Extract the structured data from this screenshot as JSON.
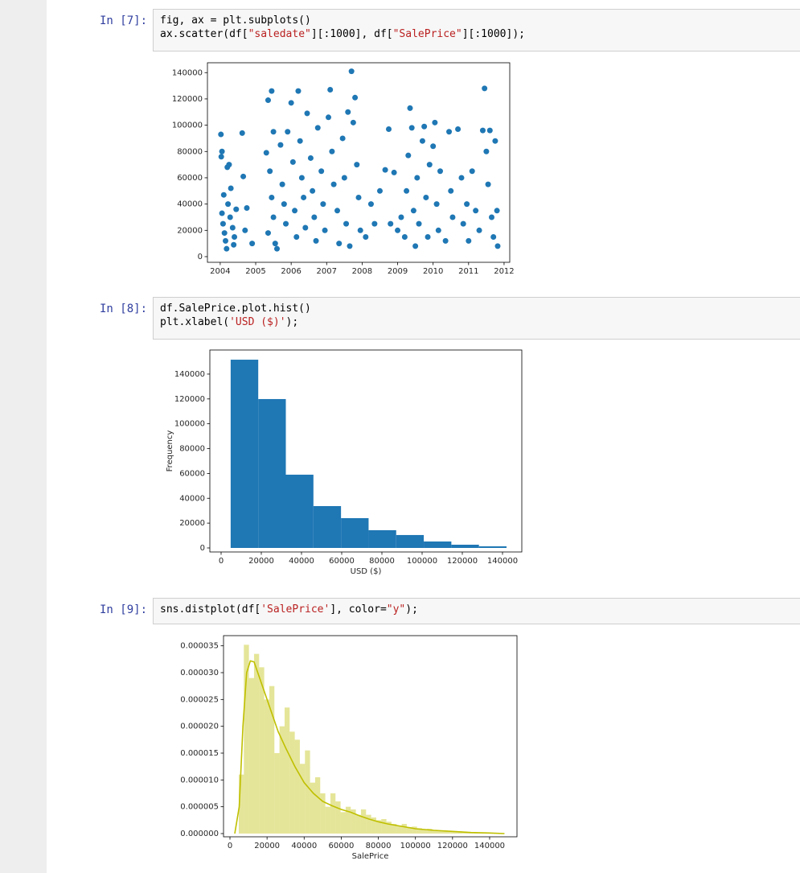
{
  "cells": [
    {
      "prompt": "In [7]:",
      "code": [
        "fig, ax = plt.subplots()",
        "ax.scatter(df[\"saledate\"][:1000], df[\"SalePrice\"][:1000]);"
      ]
    },
    {
      "prompt": "In [8]:",
      "code": [
        "df.SalePrice.plot.hist()",
        "plt.xlabel('USD ($)');"
      ]
    },
    {
      "prompt": "In [9]:",
      "code": [
        "sns.distplot(df['SalePrice'], color=\"y\");"
      ]
    }
  ],
  "chart_data": [
    {
      "type": "scatter",
      "color": "#1f77b4",
      "x": [
        2004.02,
        2004.05,
        2004.03,
        2004.1,
        2004.05,
        2004.08,
        2004.12,
        2004.15,
        2004.2,
        2004.25,
        2004.3,
        2004.22,
        2004.28,
        2004.35,
        2004.4,
        2004.45,
        2004.38,
        2004.18,
        2004.65,
        2004.62,
        2004.75,
        2004.7,
        2004.9,
        2005.35,
        2005.45,
        2005.5,
        2005.3,
        2005.4,
        2005.45,
        2005.5,
        2005.35,
        2005.55,
        2005.6,
        2005.7,
        2005.75,
        2005.8,
        2005.85,
        2005.9,
        2006.0,
        2006.05,
        2006.1,
        2006.15,
        2006.2,
        2006.25,
        2006.3,
        2006.35,
        2006.4,
        2006.45,
        2006.55,
        2006.6,
        2006.65,
        2006.7,
        2006.75,
        2006.85,
        2006.9,
        2006.95,
        2007.05,
        2007.1,
        2007.15,
        2007.2,
        2007.3,
        2007.35,
        2007.45,
        2007.5,
        2007.55,
        2007.6,
        2007.7,
        2007.75,
        2007.8,
        2007.85,
        2007.9,
        2007.95,
        2007.65,
        2008.1,
        2008.25,
        2008.35,
        2008.5,
        2008.65,
        2008.75,
        2008.8,
        2008.9,
        2009.0,
        2009.1,
        2009.2,
        2009.25,
        2009.3,
        2009.35,
        2009.4,
        2009.45,
        2009.5,
        2009.55,
        2009.6,
        2009.7,
        2009.75,
        2009.8,
        2009.85,
        2009.9,
        2010.0,
        2010.05,
        2010.1,
        2010.15,
        2010.2,
        2010.35,
        2010.45,
        2010.5,
        2010.55,
        2010.7,
        2010.8,
        2010.85,
        2010.95,
        2011.0,
        2011.1,
        2011.2,
        2011.3,
        2011.4,
        2011.45,
        2011.5,
        2011.55,
        2011.6,
        2011.65,
        2011.7,
        2011.75,
        2011.8,
        2011.82
      ],
      "values": [
        93000,
        80000,
        76000,
        47000,
        33000,
        25000,
        18000,
        12000,
        68000,
        70000,
        52000,
        40000,
        30000,
        22000,
        15000,
        36000,
        9000,
        6000,
        61000,
        94000,
        37000,
        20000,
        10000,
        119000,
        126000,
        95000,
        79000,
        65000,
        45000,
        30000,
        18000,
        10000,
        6000,
        85000,
        55000,
        40000,
        25000,
        95000,
        117000,
        72000,
        35000,
        15000,
        126000,
        88000,
        60000,
        45000,
        22000,
        109000,
        75000,
        50000,
        30000,
        12000,
        98000,
        65000,
        40000,
        20000,
        106000,
        127000,
        80000,
        55000,
        35000,
        10000,
        90000,
        60000,
        25000,
        110000,
        141000,
        102000,
        121000,
        70000,
        45000,
        20000,
        8000,
        15000,
        40000,
        25000,
        50000,
        66000,
        97000,
        25000,
        64000,
        20000,
        30000,
        15000,
        50000,
        77000,
        113000,
        98000,
        35000,
        8000,
        60000,
        25000,
        88000,
        99000,
        45000,
        15000,
        70000,
        84000,
        102000,
        40000,
        20000,
        65000,
        12000,
        95000,
        50000,
        30000,
        97000,
        60000,
        25000,
        40000,
        12000,
        65000,
        35000,
        20000,
        96000,
        128000,
        80000,
        55000,
        96000,
        30000,
        15000,
        88000,
        35000,
        8000
      ],
      "xlim": [
        2003.64,
        2012.16
      ],
      "xticks": [
        2004,
        2005,
        2006,
        2007,
        2008,
        2009,
        2010,
        2011,
        2012
      ],
      "ylim": [
        -4300,
        147500
      ],
      "yticks": [
        0,
        20000,
        40000,
        60000,
        80000,
        100000,
        120000,
        140000
      ]
    },
    {
      "type": "histogram",
      "color": "#1f77b4",
      "xlabel": "USD ($)",
      "ylabel": "Frequency",
      "bins": [
        4750,
        18475,
        32200,
        45925,
        59650,
        73375,
        87100,
        100825,
        114550,
        128275,
        142000
      ],
      "values": [
        151600,
        119900,
        59000,
        33700,
        24000,
        14300,
        10400,
        5200,
        2600,
        1300
      ],
      "xlim": [
        -5600,
        149600
      ],
      "xticks": [
        0,
        20000,
        40000,
        60000,
        80000,
        100000,
        120000,
        140000
      ],
      "ylim": [
        -3240,
        159400
      ],
      "yticks": [
        0,
        20000,
        40000,
        60000,
        80000,
        100000,
        120000,
        140000
      ]
    },
    {
      "type": "histogram",
      "color": "#bfbf00",
      "xlabel": "SalePrice",
      "bins": [
        4750,
        7495,
        10240,
        12985,
        15730,
        18475,
        21220,
        23965,
        26710,
        29455,
        32200,
        34945,
        37690,
        40435,
        43180,
        45925,
        48670,
        51415,
        54160,
        56905,
        59650,
        62395,
        65140,
        67885,
        70630,
        73375,
        76120,
        78865,
        81610,
        84355,
        87100,
        89845,
        92590,
        95335,
        98080,
        100825,
        103570,
        106315,
        109060,
        111805,
        114550,
        117295,
        120040,
        122785,
        125530,
        128275,
        131020,
        133765,
        136510,
        139255,
        142000
      ],
      "values": [
        1.1e-05,
        3.52e-05,
        2.9e-05,
        3.35e-05,
        3.1e-05,
        2.5e-05,
        2.75e-05,
        1.5e-05,
        2e-05,
        2.35e-05,
        1.9e-05,
        1.75e-05,
        1.3e-05,
        1.55e-05,
        9.5e-06,
        1.05e-05,
        7.5e-06,
        5e-06,
        7.5e-06,
        6e-06,
        4e-06,
        5e-06,
        4.5e-06,
        3.5e-06,
        4.5e-06,
        3.5e-06,
        3e-06,
        2.5e-06,
        2.7e-06,
        2.2e-06,
        1.8e-06,
        1.5e-06,
        1.8e-06,
        1.2e-06,
        1.3e-06,
        1e-06,
        8e-07,
        9e-07,
        7e-07,
        6e-07,
        6e-07,
        5e-07,
        4e-07,
        4e-07,
        3e-07,
        3e-07,
        2e-07,
        2e-07,
        1.5e-07,
        1e-07
      ],
      "kde": {
        "x": [
          2600,
          5000,
          7000,
          9000,
          11000,
          13000,
          15000,
          18000,
          22000,
          26000,
          30000,
          35000,
          40000,
          45000,
          50000,
          55000,
          60000,
          65000,
          70000,
          75000,
          80000,
          85000,
          90000,
          95000,
          100000,
          110000,
          120000,
          130000,
          140000,
          148000
        ],
        "values": [
          0,
          5e-06,
          2e-05,
          3e-05,
          3.22e-05,
          3.2e-05,
          3e-05,
          2.7e-05,
          2.3e-05,
          1.9e-05,
          1.6e-05,
          1.25e-05,
          9.5e-06,
          7.5e-06,
          6e-06,
          5.2e-06,
          4.5e-06,
          4e-06,
          3.3e-06,
          2.7e-06,
          2.2e-06,
          1.8e-06,
          1.5e-06,
          1.2e-06,
          9e-07,
          6e-07,
          4e-07,
          2e-07,
          1e-07,
          0
        ]
      },
      "xlim": [
        -3470,
        154750
      ],
      "xticks": [
        0,
        20000,
        40000,
        60000,
        80000,
        100000,
        120000,
        140000
      ],
      "ylim": [
        -6e-07,
        3.69e-05
      ],
      "yticks": [
        {
          "value": 0,
          "label": "0.000000"
        },
        {
          "value": 5e-06,
          "label": "0.000005"
        },
        {
          "value": 1e-05,
          "label": "0.000010"
        },
        {
          "value": 1.5e-05,
          "label": "0.000015"
        },
        {
          "value": 2e-05,
          "label": "0.000020"
        },
        {
          "value": 2.5e-05,
          "label": "0.000025"
        },
        {
          "value": 3e-05,
          "label": "0.000030"
        },
        {
          "value": 3.5e-05,
          "label": "0.000035"
        }
      ]
    }
  ]
}
